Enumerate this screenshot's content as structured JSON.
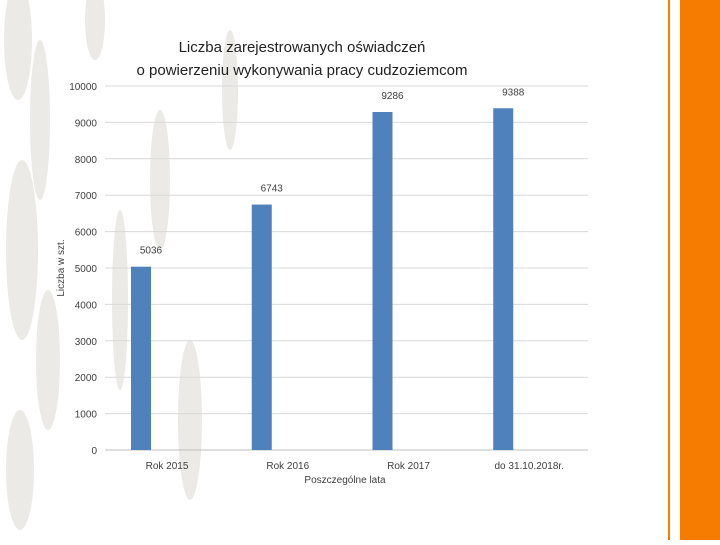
{
  "colors": {
    "bar": "#4f81bd",
    "accent": "#f57c00",
    "grid": "#d9d9d9",
    "texture": "#eceae6"
  },
  "chart_data": {
    "type": "bar",
    "title_lines": [
      "Liczba zarejestrowanych oświadczeń",
      "o powierzeniu wykonywania pracy cudzoziemcom"
    ],
    "categories": [
      "Rok 2015",
      "Rok 2016",
      "Rok 2017",
      "do 31.10.2018r."
    ],
    "values": [
      5036,
      6743,
      9286,
      9388
    ],
    "data_labels": [
      "5036",
      "6743",
      "9286",
      "9388"
    ],
    "xlabel": "Poszczególne lata",
    "ylabel": "Liczba w szt.",
    "ylim": [
      0,
      10000
    ],
    "yticks": [
      0,
      1000,
      2000,
      3000,
      4000,
      5000,
      6000,
      7000,
      8000,
      9000,
      10000
    ],
    "grid": true,
    "legend": "none"
  }
}
